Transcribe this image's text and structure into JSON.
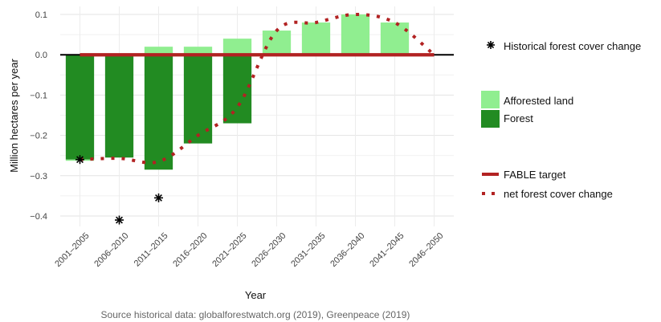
{
  "chart_data": {
    "type": "bar",
    "categories": [
      "2001–2005",
      "2006–2010",
      "2011–2015",
      "2016–2020",
      "2021–2025",
      "2026–2030",
      "2031–2035",
      "2036–2040",
      "2041–2045",
      "2046–2050"
    ],
    "series": [
      {
        "name": "Forest",
        "color": "#228b22",
        "values": [
          -0.26,
          -0.255,
          -0.285,
          -0.22,
          -0.17,
          0,
          0,
          0,
          0,
          0
        ]
      },
      {
        "name": "Afforested land",
        "color": "#90ee90",
        "values": [
          -0.003,
          0,
          0.02,
          0.02,
          0.04,
          0.06,
          0.08,
          0.1,
          0.08,
          0
        ]
      },
      {
        "name": "FABLE target",
        "color": "#b22222",
        "values": [
          0,
          0,
          0,
          0,
          0,
          0,
          0,
          0,
          0,
          0
        ]
      },
      {
        "name": "net forest cover change",
        "color": "#b22222",
        "values": [
          -0.26,
          -0.257,
          -0.265,
          -0.2,
          -0.13,
          0.06,
          0.08,
          0.1,
          0.08,
          0
        ]
      },
      {
        "name": "Historical forest cover change",
        "color": "#000000",
        "values": [
          -0.26,
          -0.41,
          -0.355,
          null,
          null,
          null,
          null,
          null,
          null,
          null
        ]
      }
    ],
    "xlabel": "Year",
    "ylabel": "Million hectares per year",
    "ylim": [
      -0.4,
      0.1
    ],
    "yticks": [
      "0.1",
      "0.0",
      "−0.1",
      "−0.2",
      "−0.3",
      "−0.4"
    ],
    "grid": true,
    "legend_position": "right",
    "caption": "Source historical data: globalforestwatch.org (2019), Greenpeace (2019)"
  }
}
